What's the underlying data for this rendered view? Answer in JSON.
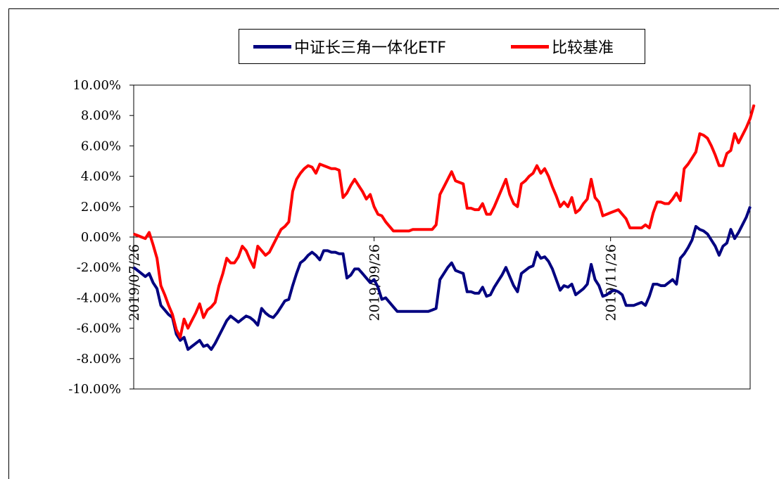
{
  "chart_data": {
    "type": "line",
    "title": "",
    "xlabel": "",
    "ylabel": "",
    "ylim": [
      -10,
      10
    ],
    "y_ticks": [
      "10.00%",
      "8.00%",
      "6.00%",
      "4.00%",
      "2.00%",
      "0.00%",
      "-2.00%",
      "-4.00%",
      "-6.00%",
      "-8.00%",
      "-10.00%"
    ],
    "x_ticks": [
      "2019/07/26",
      "2019/09/26",
      "2019/11/26"
    ],
    "legend_position": "top-center",
    "grid": false,
    "series": [
      {
        "name": "中证长三角一体化ETF",
        "color": "#000080",
        "values": [
          -2.0,
          -2.2,
          -2.4,
          -2.6,
          -2.4,
          -3.0,
          -3.4,
          -4.5,
          -4.8,
          -5.1,
          -5.3,
          -6.4,
          -6.8,
          -6.6,
          -7.4,
          -7.2,
          -7.0,
          -6.8,
          -7.2,
          -7.1,
          -7.4,
          -7.0,
          -6.5,
          -6.0,
          -5.5,
          -5.2,
          -5.4,
          -5.6,
          -5.4,
          -5.2,
          -5.3,
          -5.5,
          -5.8,
          -4.7,
          -5.0,
          -5.2,
          -5.3,
          -5.0,
          -4.6,
          -4.2,
          -4.1,
          -3.2,
          -2.4,
          -1.7,
          -1.5,
          -1.2,
          -1.0,
          -1.2,
          -1.5,
          -0.9,
          -0.9,
          -1.0,
          -1.0,
          -1.1,
          -1.1,
          -2.7,
          -2.5,
          -2.1,
          -2.1,
          -2.4,
          -2.7,
          -3.0,
          -2.8,
          -3.3,
          -4.1,
          -4.0,
          -4.3,
          -4.6,
          -4.9,
          -4.9,
          -4.9,
          -4.9,
          -4.9,
          -4.9,
          -4.9,
          -4.9,
          -4.9,
          -4.8,
          -4.7,
          -2.8,
          -2.4,
          -2.0,
          -1.7,
          -2.2,
          -2.3,
          -2.4,
          -3.6,
          -3.6,
          -3.7,
          -3.7,
          -3.3,
          -3.9,
          -3.8,
          -3.3,
          -2.9,
          -2.5,
          -2.0,
          -2.6,
          -3.2,
          -3.6,
          -2.4,
          -2.2,
          -2.0,
          -1.9,
          -1.0,
          -1.4,
          -1.3,
          -1.6,
          -2.1,
          -2.8,
          -3.5,
          -3.2,
          -3.3,
          -3.1,
          -3.8,
          -3.6,
          -3.4,
          -3.1,
          -1.8,
          -2.8,
          -3.2,
          -3.9,
          -3.8,
          -3.6,
          -3.5,
          -3.6,
          -3.8,
          -4.5,
          -4.5,
          -4.5,
          -4.4,
          -4.3,
          -4.5,
          -3.9,
          -3.1,
          -3.1,
          -3.2,
          -3.2,
          -3.0,
          -2.8,
          -3.1,
          -1.4,
          -1.1,
          -0.7,
          -0.2,
          0.7,
          0.5,
          0.4,
          0.2,
          -0.2,
          -0.6,
          -1.2,
          -0.6,
          -0.4,
          0.5,
          -0.1,
          0.3,
          0.8,
          1.3,
          2.0
        ]
      },
      {
        "name": "比较基准",
        "color": "#ff0000",
        "values": [
          0.2,
          0.1,
          0.0,
          -0.1,
          0.3,
          -0.5,
          -1.4,
          -3.2,
          -3.8,
          -4.5,
          -5.1,
          -6.1,
          -6.6,
          -5.4,
          -6.0,
          -5.5,
          -5.0,
          -4.4,
          -5.3,
          -4.8,
          -4.6,
          -4.3,
          -3.2,
          -2.4,
          -1.4,
          -1.7,
          -1.7,
          -1.3,
          -0.6,
          -0.9,
          -1.5,
          -2.0,
          -0.6,
          -0.9,
          -1.2,
          -1.0,
          -0.5,
          0.0,
          0.5,
          0.7,
          1.0,
          3.0,
          3.8,
          4.2,
          4.5,
          4.7,
          4.6,
          4.2,
          4.8,
          4.7,
          4.6,
          4.5,
          4.5,
          4.4,
          2.6,
          2.9,
          3.4,
          3.8,
          3.4,
          3.0,
          2.5,
          2.8,
          2.0,
          1.5,
          1.4,
          1.0,
          0.7,
          0.4,
          0.4,
          0.4,
          0.4,
          0.4,
          0.5,
          0.5,
          0.5,
          0.5,
          0.5,
          0.5,
          0.8,
          2.8,
          3.3,
          3.8,
          4.3,
          3.7,
          3.6,
          3.5,
          1.9,
          1.9,
          1.8,
          1.8,
          2.2,
          1.5,
          1.5,
          2.0,
          2.6,
          3.2,
          3.8,
          2.8,
          2.2,
          2.0,
          3.5,
          3.7,
          4.0,
          4.2,
          4.7,
          4.2,
          4.5,
          4.0,
          3.3,
          2.7,
          2.0,
          2.3,
          2.0,
          2.6,
          1.6,
          1.8,
          2.2,
          2.5,
          3.8,
          2.6,
          2.3,
          1.4,
          1.5,
          1.6,
          1.7,
          1.8,
          1.5,
          1.2,
          0.6,
          0.6,
          0.6,
          0.6,
          0.8,
          0.6,
          1.6,
          2.3,
          2.3,
          2.2,
          2.2,
          2.5,
          2.9,
          2.4,
          4.5,
          4.8,
          5.2,
          5.6,
          6.8,
          6.7,
          6.5,
          6.0,
          5.4,
          4.7,
          4.7,
          5.5,
          5.7,
          6.8,
          6.2,
          6.7,
          7.2,
          7.8,
          8.7
        ]
      }
    ]
  }
}
